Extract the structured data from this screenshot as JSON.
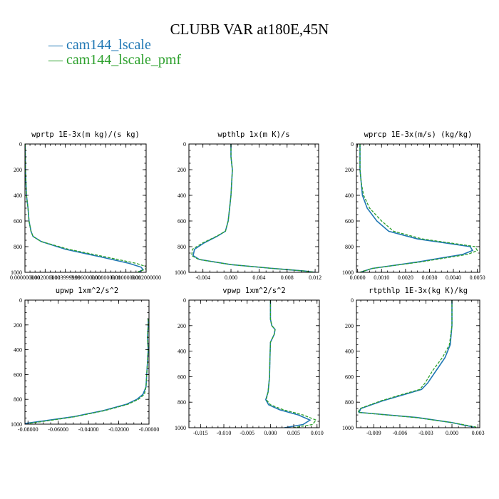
{
  "title": "CLUBB VAR at180E,45N",
  "legend": [
    {
      "label": "— cam144_lscale",
      "color": "#1f77b4"
    },
    {
      "label": "— cam144_lscale_pmf",
      "color": "#2ca02c"
    }
  ],
  "chart_data": [
    {
      "type": "line",
      "title": "wprtp  1E-3x(m kg)/(s kg)",
      "xlim": [
        0,
        0.012
      ],
      "xticks": [
        0,
        0.002,
        0.004,
        0.006,
        0.008,
        0.01,
        0.012
      ],
      "xtick_labels": [
        "0.000000000",
        "0.002000000",
        "0.003999999",
        "0.006000000",
        "0.008000000",
        "0.010000000",
        "0.012000000"
      ],
      "ylim": [
        0,
        1000
      ],
      "yticks": [
        0,
        200,
        400,
        600,
        800,
        1000
      ],
      "ytick_labels": [
        "0",
        "200",
        "400",
        "600",
        "800",
        "1000"
      ],
      "series": [
        {
          "name": "cam144_lscale",
          "color": "#1f77b4",
          "dashed": false,
          "x": [
            2e-05,
            5e-05,
            0.0001,
            0.00015,
            0.0003,
            0.0004,
            0.0006,
            0.0008,
            0.0016,
            0.004,
            0.0075,
            0.0103,
            0.0115,
            0.0117,
            0.0113
          ],
          "y": [
            0,
            200,
            300,
            400,
            500,
            600,
            680,
            720,
            760,
            820,
            880,
            930,
            960,
            980,
            995
          ]
        },
        {
          "name": "cam144_lscale_pmf",
          "color": "#2ca02c",
          "dashed": true,
          "x": [
            2e-05,
            5e-05,
            0.0001,
            0.00015,
            0.0003,
            0.0004,
            0.0006,
            0.0008,
            0.0016,
            0.0043,
            0.008,
            0.011,
            0.0122,
            0.0118,
            0.0112
          ],
          "y": [
            0,
            200,
            300,
            400,
            500,
            600,
            680,
            720,
            760,
            820,
            880,
            930,
            960,
            980,
            995
          ]
        }
      ]
    },
    {
      "type": "line",
      "title": "wpthlp  1x(m K)/s",
      "xlim": [
        -0.006,
        0.0125
      ],
      "xticks": [
        -0.004,
        0.0,
        0.004,
        0.008,
        0.012
      ],
      "xtick_labels": [
        "-0.004",
        "0.000",
        "0.004",
        "0.008",
        "0.012"
      ],
      "ylim": [
        0,
        1000
      ],
      "yticks": [
        0,
        200,
        400,
        600,
        800,
        1000
      ],
      "ytick_labels": [
        "0",
        "200",
        "400",
        "600",
        "800",
        "1000"
      ],
      "series": [
        {
          "name": "cam144_lscale",
          "color": "#1f77b4",
          "dashed": false,
          "x": [
            0.0,
            0.0,
            0.0002,
            0.0001,
            0.0,
            -0.0002,
            -0.0004,
            -0.0008,
            -0.002,
            -0.0038,
            -0.0052,
            -0.0054,
            -0.0045,
            0.0,
            0.006,
            0.0105,
            0.012
          ],
          "y": [
            0,
            100,
            200,
            300,
            400,
            500,
            600,
            680,
            720,
            770,
            820,
            870,
            900,
            940,
            970,
            990,
            1000
          ]
        },
        {
          "name": "cam144_lscale_pmf",
          "color": "#2ca02c",
          "dashed": true,
          "x": [
            0.0,
            0.0,
            0.0002,
            0.0001,
            0.0,
            -0.0002,
            -0.0004,
            -0.0008,
            -0.0021,
            -0.004,
            -0.0055,
            -0.0056,
            -0.0046,
            0.0,
            0.006,
            0.0105,
            0.012
          ],
          "y": [
            0,
            100,
            200,
            300,
            400,
            500,
            600,
            680,
            720,
            770,
            820,
            870,
            900,
            940,
            970,
            990,
            1000
          ]
        }
      ]
    },
    {
      "type": "line",
      "title": "wprcp  1E-3x(m/s) (kg/kg)",
      "xlim": [
        -5e-05,
        0.0051
      ],
      "xticks": [
        0.0,
        0.001,
        0.002,
        0.003,
        0.004,
        0.005
      ],
      "xtick_labels": [
        "0.0000",
        "0.0010",
        "0.0020",
        "0.0030",
        "0.0040",
        "0.0050"
      ],
      "ylim": [
        0,
        1000
      ],
      "yticks": [
        0,
        200,
        400,
        600,
        800,
        1000
      ],
      "ytick_labels": [
        "0",
        "200",
        "400",
        "600",
        "800",
        "1000"
      ],
      "series": [
        {
          "name": "cam144_lscale",
          "color": "#1f77b4",
          "dashed": false,
          "x": [
            0.0001,
            0.0001,
            0.00015,
            0.0002,
            0.0004,
            0.0008,
            0.0013,
            0.0025,
            0.004,
            0.0047,
            0.0048,
            0.0044,
            0.0025,
            0.0006,
            0.0001
          ],
          "y": [
            0,
            200,
            300,
            400,
            500,
            600,
            680,
            740,
            780,
            800,
            830,
            860,
            920,
            970,
            1000
          ]
        },
        {
          "name": "cam144_lscale_pmf",
          "color": "#2ca02c",
          "dashed": true,
          "x": [
            0.0001,
            0.0001,
            0.00015,
            0.00025,
            0.0005,
            0.001,
            0.0015,
            0.0027,
            0.0042,
            0.0049,
            0.005,
            0.0046,
            0.0026,
            0.0006,
            0.0001
          ],
          "y": [
            0,
            200,
            300,
            400,
            500,
            600,
            680,
            740,
            780,
            800,
            830,
            860,
            920,
            970,
            1000
          ]
        }
      ]
    },
    {
      "type": "line",
      "title": "upwp  1xm^2/s^2",
      "xlim": [
        -0.082,
        0.0
      ],
      "xticks": [
        -0.08,
        -0.06,
        -0.04,
        -0.02,
        0.0
      ],
      "xtick_labels": [
        "-0.08000",
        "-0.06000",
        "-0.04000",
        "-0.02000",
        "-0.00000"
      ],
      "ylim": [
        0,
        1000
      ],
      "yticks": [
        0,
        200,
        400,
        600,
        800,
        1000
      ],
      "ytick_labels": [
        "0",
        "200",
        "400",
        "600",
        "800",
        "1000"
      ],
      "series": [
        {
          "name": "cam144_lscale",
          "color": "#1f77b4",
          "dashed": false,
          "x": [
            -0.0005,
            -0.0005,
            -0.001,
            -0.0005,
            -0.001,
            -0.0015,
            -0.002,
            -0.004,
            -0.008,
            -0.015,
            -0.03,
            -0.05,
            -0.07,
            -0.082
          ],
          "y": [
            150,
            200,
            300,
            400,
            500,
            600,
            700,
            760,
            800,
            840,
            890,
            940,
            975,
            995
          ]
        },
        {
          "name": "cam144_lscale_pmf",
          "color": "#2ca02c",
          "dashed": true,
          "x": [
            -0.0005,
            -0.0005,
            -0.001,
            -0.0005,
            -0.001,
            -0.0015,
            -0.002,
            -0.003,
            -0.007,
            -0.014,
            -0.029,
            -0.049,
            -0.068,
            -0.08
          ],
          "y": [
            150,
            200,
            300,
            400,
            500,
            600,
            700,
            760,
            800,
            840,
            890,
            940,
            975,
            995
          ]
        }
      ]
    },
    {
      "type": "line",
      "title": "vpwp  1xm^2/s^2",
      "xlim": [
        -0.0175,
        0.0105
      ],
      "xticks": [
        -0.015,
        -0.01,
        -0.005,
        0.0,
        0.005,
        0.01
      ],
      "xtick_labels": [
        "-0.015",
        "-0.010",
        "-0.005",
        "0.000",
        "0.005",
        "0.010"
      ],
      "ylim": [
        0,
        1000
      ],
      "yticks": [
        0,
        200,
        400,
        600,
        800,
        1000
      ],
      "ytick_labels": [
        "0",
        "200",
        "400",
        "600",
        "800",
        "1000"
      ],
      "series": [
        {
          "name": "cam144_lscale",
          "color": "#1f77b4",
          "dashed": false,
          "x": [
            0.0,
            0.0,
            0.0003,
            0.001,
            0.0008,
            0.0,
            -0.0001,
            -0.0002,
            -0.0005,
            -0.001,
            -0.0004,
            0.002,
            0.006,
            0.0085,
            0.007,
            0.003
          ],
          "y": [
            0,
            150,
            200,
            230,
            270,
            330,
            450,
            600,
            720,
            780,
            820,
            860,
            900,
            940,
            975,
            1000
          ]
        },
        {
          "name": "cam144_lscale_pmf",
          "color": "#2ca02c",
          "dashed": true,
          "x": [
            0.0,
            0.0,
            0.0003,
            0.001,
            0.0008,
            0.0,
            -0.0001,
            -0.0002,
            -0.0005,
            -0.0009,
            0.0,
            0.0028,
            0.007,
            0.0098,
            0.009,
            0.005
          ],
          "y": [
            0,
            150,
            200,
            230,
            270,
            330,
            450,
            600,
            720,
            780,
            820,
            860,
            900,
            940,
            975,
            1000
          ]
        }
      ]
    },
    {
      "type": "line",
      "title": "rtpthlp  1E-3x(kg K)/kg",
      "xlim": [
        -0.011,
        0.0032
      ],
      "xticks": [
        -0.009,
        -0.006,
        -0.003,
        0.0,
        0.003
      ],
      "xtick_labels": [
        "-0.009",
        "-0.006",
        "-0.003",
        "0.000",
        "0.003"
      ],
      "ylim": [
        0,
        1000
      ],
      "yticks": [
        0,
        200,
        400,
        600,
        800,
        1000
      ],
      "ytick_labels": [
        "0",
        "200",
        "400",
        "600",
        "800",
        "1000"
      ],
      "series": [
        {
          "name": "cam144_lscale",
          "color": "#1f77b4",
          "dashed": false,
          "x": [
            0.0,
            0.0,
            -0.0002,
            -0.0008,
            -0.0018,
            -0.0028,
            -0.0035,
            -0.0055,
            -0.008,
            -0.0105,
            -0.0107,
            -0.004,
            0.0,
            0.0025
          ],
          "y": [
            0,
            200,
            350,
            450,
            550,
            650,
            700,
            740,
            790,
            850,
            880,
            920,
            960,
            995
          ]
        },
        {
          "name": "cam144_lscale_pmf",
          "color": "#2ca02c",
          "dashed": true,
          "x": [
            0.0,
            0.0,
            -0.0003,
            -0.0011,
            -0.0022,
            -0.0031,
            -0.0037,
            -0.0058,
            -0.0082,
            -0.0106,
            -0.0108,
            -0.0042,
            0.0,
            0.0028
          ],
          "y": [
            0,
            200,
            350,
            450,
            550,
            650,
            700,
            740,
            790,
            850,
            880,
            920,
            960,
            995
          ]
        }
      ]
    }
  ]
}
